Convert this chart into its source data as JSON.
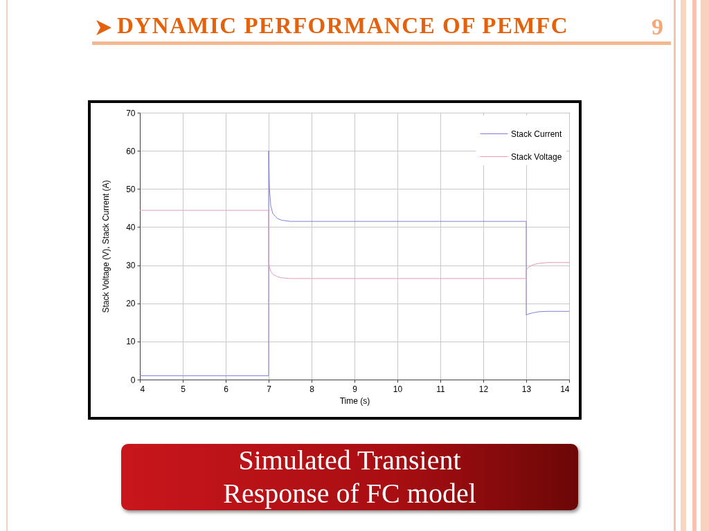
{
  "chart_data": {
    "type": "line",
    "title": "DYNAMIC PERFORMANCE OF PEMFC",
    "xlabel": "Time (s)",
    "ylabel": "Stack Voltage (V), Stack Current (A)",
    "annotations": [
      "9",
      "Simulated Transient Response of FC model"
    ],
    "series": [
      {
        "name": "Stack Current",
        "color": "#8080d8",
        "x": [
          4,
          7,
          7,
          7.02,
          7.05,
          7.1,
          7.2,
          7.3,
          7.5,
          13,
          13,
          13.05,
          13.15,
          13.3,
          13.5,
          14
        ],
        "values": [
          1,
          1,
          60,
          50,
          45.5,
          43.5,
          42.3,
          41.8,
          41.5,
          41.5,
          16.9,
          17.2,
          17.5,
          17.8,
          17.9,
          17.9
        ]
      },
      {
        "name": "Stack Voltage",
        "color": "#e89ab8",
        "x": [
          4,
          7,
          7,
          7.02,
          7.05,
          7.1,
          7.2,
          7.3,
          7.5,
          13,
          13,
          13.05,
          13.15,
          13.3,
          13.5,
          14
        ],
        "values": [
          44.4,
          44.4,
          31,
          29.5,
          28.4,
          27.6,
          27,
          26.7,
          26.5,
          26.5,
          28.8,
          29.4,
          30.1,
          30.5,
          30.7,
          30.7
        ]
      }
    ],
    "xlim": [
      4,
      14
    ],
    "xticks": [
      4,
      5,
      6,
      7,
      8,
      9,
      10,
      11,
      12,
      13,
      14
    ],
    "ylim": [
      0,
      70
    ],
    "yticks": [
      0,
      10,
      20,
      30,
      40,
      50,
      60,
      70
    ],
    "grid": true,
    "legend": "top right"
  }
}
